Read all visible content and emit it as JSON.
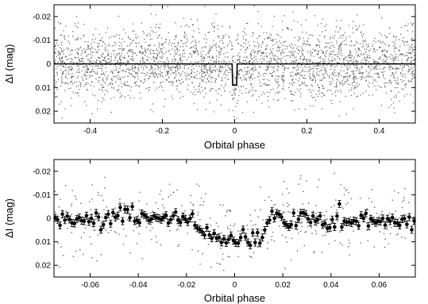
{
  "chart_data": [
    {
      "type": "scatter",
      "xlabel": "Orbital phase",
      "ylabel": "ΔI (mag)",
      "xlim": [
        -0.5,
        0.5
      ],
      "ylim": [
        0.025,
        -0.025
      ],
      "y_inverted": true,
      "grid": false,
      "x_ticks": [
        -0.4,
        -0.2,
        0,
        0.2,
        0.4
      ],
      "x_tick_labels": [
        "-0.4",
        "-0.2",
        "0",
        "0.2",
        "0.4"
      ],
      "y_ticks": [
        -0.02,
        -0.01,
        0,
        0.01,
        0.02
      ],
      "y_tick_labels": [
        "-0.02",
        "-0.01",
        "0",
        "0.01",
        "0.02"
      ],
      "scatter": {
        "approx_points": 3000,
        "phase_range": [
          -0.5,
          0.5
        ],
        "center_mag": 0,
        "scatter_sd_mag": 0.0075,
        "color": "#555555"
      },
      "model": {
        "x": [
          -0.5,
          -0.007,
          -0.0055,
          0.0055,
          0.007,
          0.5
        ],
        "y": [
          0,
          0,
          0.009,
          0.009,
          0,
          0
        ],
        "color": "#000000"
      }
    },
    {
      "type": "scatter",
      "xlabel": "Orbital phase",
      "ylabel": "ΔI (mag)",
      "xlim": [
        -0.075,
        0.075
      ],
      "ylim": [
        0.025,
        -0.025
      ],
      "y_inverted": true,
      "grid": false,
      "x_ticks": [
        -0.06,
        -0.04,
        -0.02,
        0,
        0.02,
        0.04,
        0.06
      ],
      "x_tick_labels": [
        "-0.06",
        "-0.04",
        "-0.02",
        "0",
        "0.02",
        "0.04",
        "0.06"
      ],
      "y_ticks": [
        -0.02,
        -0.01,
        0,
        0.01,
        0.02
      ],
      "y_tick_labels": [
        "-0.02",
        "-0.01",
        "0",
        "0.01",
        "0.02"
      ],
      "raw_scatter": {
        "approx_points": 420,
        "phase_range": [
          -0.075,
          0.075
        ],
        "scatter_sd_mag": 0.0075,
        "color": "#777777"
      },
      "binned": {
        "x": [
          -0.0745,
          -0.0735,
          -0.0725,
          -0.0715,
          -0.0705,
          -0.0695,
          -0.0685,
          -0.0675,
          -0.0665,
          -0.0655,
          -0.0645,
          -0.0635,
          -0.0625,
          -0.0615,
          -0.0605,
          -0.0595,
          -0.0585,
          -0.0575,
          -0.0565,
          -0.0555,
          -0.0545,
          -0.0535,
          -0.0525,
          -0.0515,
          -0.0505,
          -0.0495,
          -0.0485,
          -0.0475,
          -0.0465,
          -0.0455,
          -0.0445,
          -0.0435,
          -0.0425,
          -0.0415,
          -0.0405,
          -0.0395,
          -0.0385,
          -0.0375,
          -0.0365,
          -0.0355,
          -0.0345,
          -0.0335,
          -0.0325,
          -0.0315,
          -0.0305,
          -0.0295,
          -0.0285,
          -0.0275,
          -0.0265,
          -0.0255,
          -0.0245,
          -0.0235,
          -0.0225,
          -0.0215,
          -0.0205,
          -0.0195,
          -0.0185,
          -0.0175,
          -0.0165,
          -0.0155,
          -0.0145,
          -0.0135,
          -0.0125,
          -0.0115,
          -0.0105,
          -0.0095,
          -0.0085,
          -0.0075,
          -0.0065,
          -0.0055,
          -0.0045,
          -0.0035,
          -0.0025,
          -0.0015,
          -0.0005,
          0.0005,
          0.0015,
          0.0025,
          0.0035,
          0.0045,
          0.0055,
          0.0065,
          0.0075,
          0.0085,
          0.0095,
          0.0105,
          0.0115,
          0.0125,
          0.0135,
          0.0145,
          0.0155,
          0.0165,
          0.0175,
          0.0185,
          0.0195,
          0.0205,
          0.0215,
          0.0225,
          0.0235,
          0.0245,
          0.0255,
          0.0265,
          0.0275,
          0.0285,
          0.0295,
          0.0305,
          0.0315,
          0.0325,
          0.0335,
          0.0345,
          0.0355,
          0.0365,
          0.0375,
          0.0385,
          0.0395,
          0.0405,
          0.0415,
          0.0425,
          0.0435,
          0.0445,
          0.0455,
          0.0465,
          0.0475,
          0.0485,
          0.0495,
          0.0505,
          0.0515,
          0.0525,
          0.0535,
          0.0545,
          0.0555,
          0.0565,
          0.0575,
          0.0585,
          0.0595,
          0.0605,
          0.0615,
          0.0625,
          0.0635,
          0.0645,
          0.0655,
          0.0665,
          0.0675,
          0.0685,
          0.0695,
          0.0705,
          0.0715,
          0.0725,
          0.0735,
          0.0745
        ],
        "y": [
          -0.0002,
          0.0006,
          0.003,
          -0.0018,
          0.0008,
          -0.0009,
          0.0005,
          0.002,
          0.0022,
          0.0003,
          -0.0003,
          0.001,
          0.0012,
          -0.0011,
          0.0015,
          0.0,
          0.0021,
          -0.0023,
          -0.0005,
          0.0049,
          0.0028,
          -0.0003,
          -0.0018,
          0.0023,
          -0.0024,
          -0.0004,
          -0.0011,
          -0.0046,
          0.0012,
          -0.0038,
          -0.0037,
          -0.0002,
          -0.005,
          0.0012,
          0.0008,
          0.0019,
          -0.002,
          -0.0014,
          -0.0005,
          0.0009,
          0.0003,
          -0.001,
          -0.0003,
          0.0,
          0.0006,
          -0.0004,
          -0.0013,
          0.002,
          0.0006,
          -0.0011,
          -0.0026,
          0.0008,
          0.0018,
          -0.0007,
          0.0004,
          0.0016,
          0.0001,
          -0.0019,
          0.003,
          0.0042,
          0.0048,
          0.0058,
          0.0072,
          0.004,
          0.0071,
          0.0085,
          0.0064,
          0.0085,
          0.0082,
          0.0103,
          0.0088,
          0.0105,
          0.009,
          0.0073,
          0.0095,
          0.0105,
          0.0106,
          0.0082,
          0.0048,
          0.0079,
          0.0103,
          0.0115,
          0.0062,
          0.0103,
          0.0061,
          0.0106,
          0.0082,
          0.005,
          0.002,
          0.0008,
          -0.003,
          0.0,
          -0.0022,
          -0.0017,
          -0.0005,
          0.002,
          0.0028,
          0.0037,
          0.0027,
          -0.0023,
          0.0031,
          0.0004,
          -0.0023,
          -0.0023,
          -0.0018,
          0.0003,
          0.0018,
          -0.001,
          0.0013,
          0.0006,
          -0.001,
          0.0028,
          0.0022,
          0.0043,
          0.004,
          0.0006,
          0.0037,
          -0.0009,
          -0.0061,
          0.0037,
          0.0012,
          0.0017,
          0.0015,
          0.002,
          0.001,
          0.0013,
          0.0032,
          -0.0013,
          0.0,
          -0.0021,
          0.0033,
          0.0002,
          0.0011,
          0.0019,
          0.0012,
          0.0014,
          0.0001,
          0.0029,
          0.0002,
          0.0012,
          -0.0003,
          0.0019,
          0.002,
          0.003,
          0.0004,
          0.0001,
          0.0026,
          -0.0005,
          0.0049,
          0.0011
        ],
        "yerr": 0.0015,
        "color": "#000000"
      }
    }
  ]
}
